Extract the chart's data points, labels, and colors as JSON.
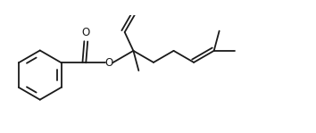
{
  "bg_color": "#ffffff",
  "line_color": "#1a1a1a",
  "line_width": 1.3,
  "figsize": [
    3.54,
    1.49
  ],
  "dpi": 100
}
